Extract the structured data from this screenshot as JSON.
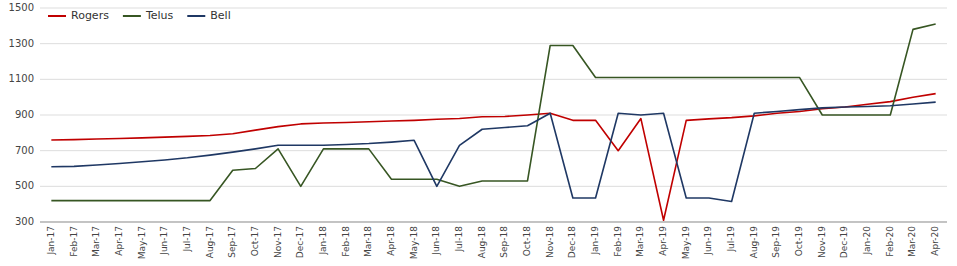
{
  "chart_data": {
    "type": "line",
    "categories": [
      "Jan-17",
      "Feb-17",
      "Mar-17",
      "Apr-17",
      "May-17",
      "Jun-17",
      "Jul-17",
      "Aug-17",
      "Sep-17",
      "Oct-17",
      "Nov-17",
      "Dec-17",
      "Jan-18",
      "Feb-18",
      "Mar-18",
      "Apr-18",
      "May-18",
      "Jun-18",
      "Jul-18",
      "Aug-18",
      "Sep-18",
      "Oct-18",
      "Nov-18",
      "Dec-18",
      "Jan-19",
      "Feb-19",
      "Mar-19",
      "Apr-19",
      "May-19",
      "Jun-19",
      "Jul-19",
      "Aug-19",
      "Sep-19",
      "Oct-19",
      "Nov-19",
      "Dec-19",
      "Jan-20",
      "Feb-20",
      "Mar-20",
      "Apr-20"
    ],
    "series": [
      {
        "name": "Rogers",
        "color": "#C00000",
        "values": [
          760,
          762,
          765,
          768,
          772,
          776,
          780,
          785,
          795,
          815,
          835,
          850,
          855,
          858,
          862,
          866,
          870,
          876,
          880,
          890,
          892,
          900,
          910,
          870,
          870,
          700,
          880,
          310,
          870,
          878,
          885,
          895,
          910,
          920,
          935,
          945,
          960,
          975,
          1000,
          1020
        ]
      },
      {
        "name": "Telus",
        "color": "#375623",
        "values": [
          420,
          420,
          420,
          420,
          420,
          420,
          420,
          420,
          590,
          600,
          710,
          500,
          710,
          710,
          710,
          540,
          540,
          540,
          500,
          530,
          530,
          530,
          1290,
          1290,
          1110,
          1110,
          1110,
          1110,
          1110,
          1110,
          1110,
          1110,
          1110,
          1110,
          900,
          900,
          900,
          900,
          1380,
          1410
        ]
      },
      {
        "name": "Bell",
        "color": "#1F3864",
        "values": [
          610,
          612,
          620,
          628,
          638,
          648,
          660,
          675,
          692,
          710,
          730,
          730,
          730,
          735,
          740,
          748,
          758,
          500,
          730,
          820,
          830,
          840,
          910,
          435,
          435,
          910,
          900,
          910,
          435,
          435,
          415,
          910,
          920,
          930,
          940,
          945,
          948,
          952,
          962,
          972
        ]
      }
    ],
    "ylim": [
      300,
      1500
    ],
    "yticks": [
      300,
      500,
      700,
      900,
      1100,
      1300,
      1500
    ],
    "grid": true,
    "legend": "upper left"
  }
}
